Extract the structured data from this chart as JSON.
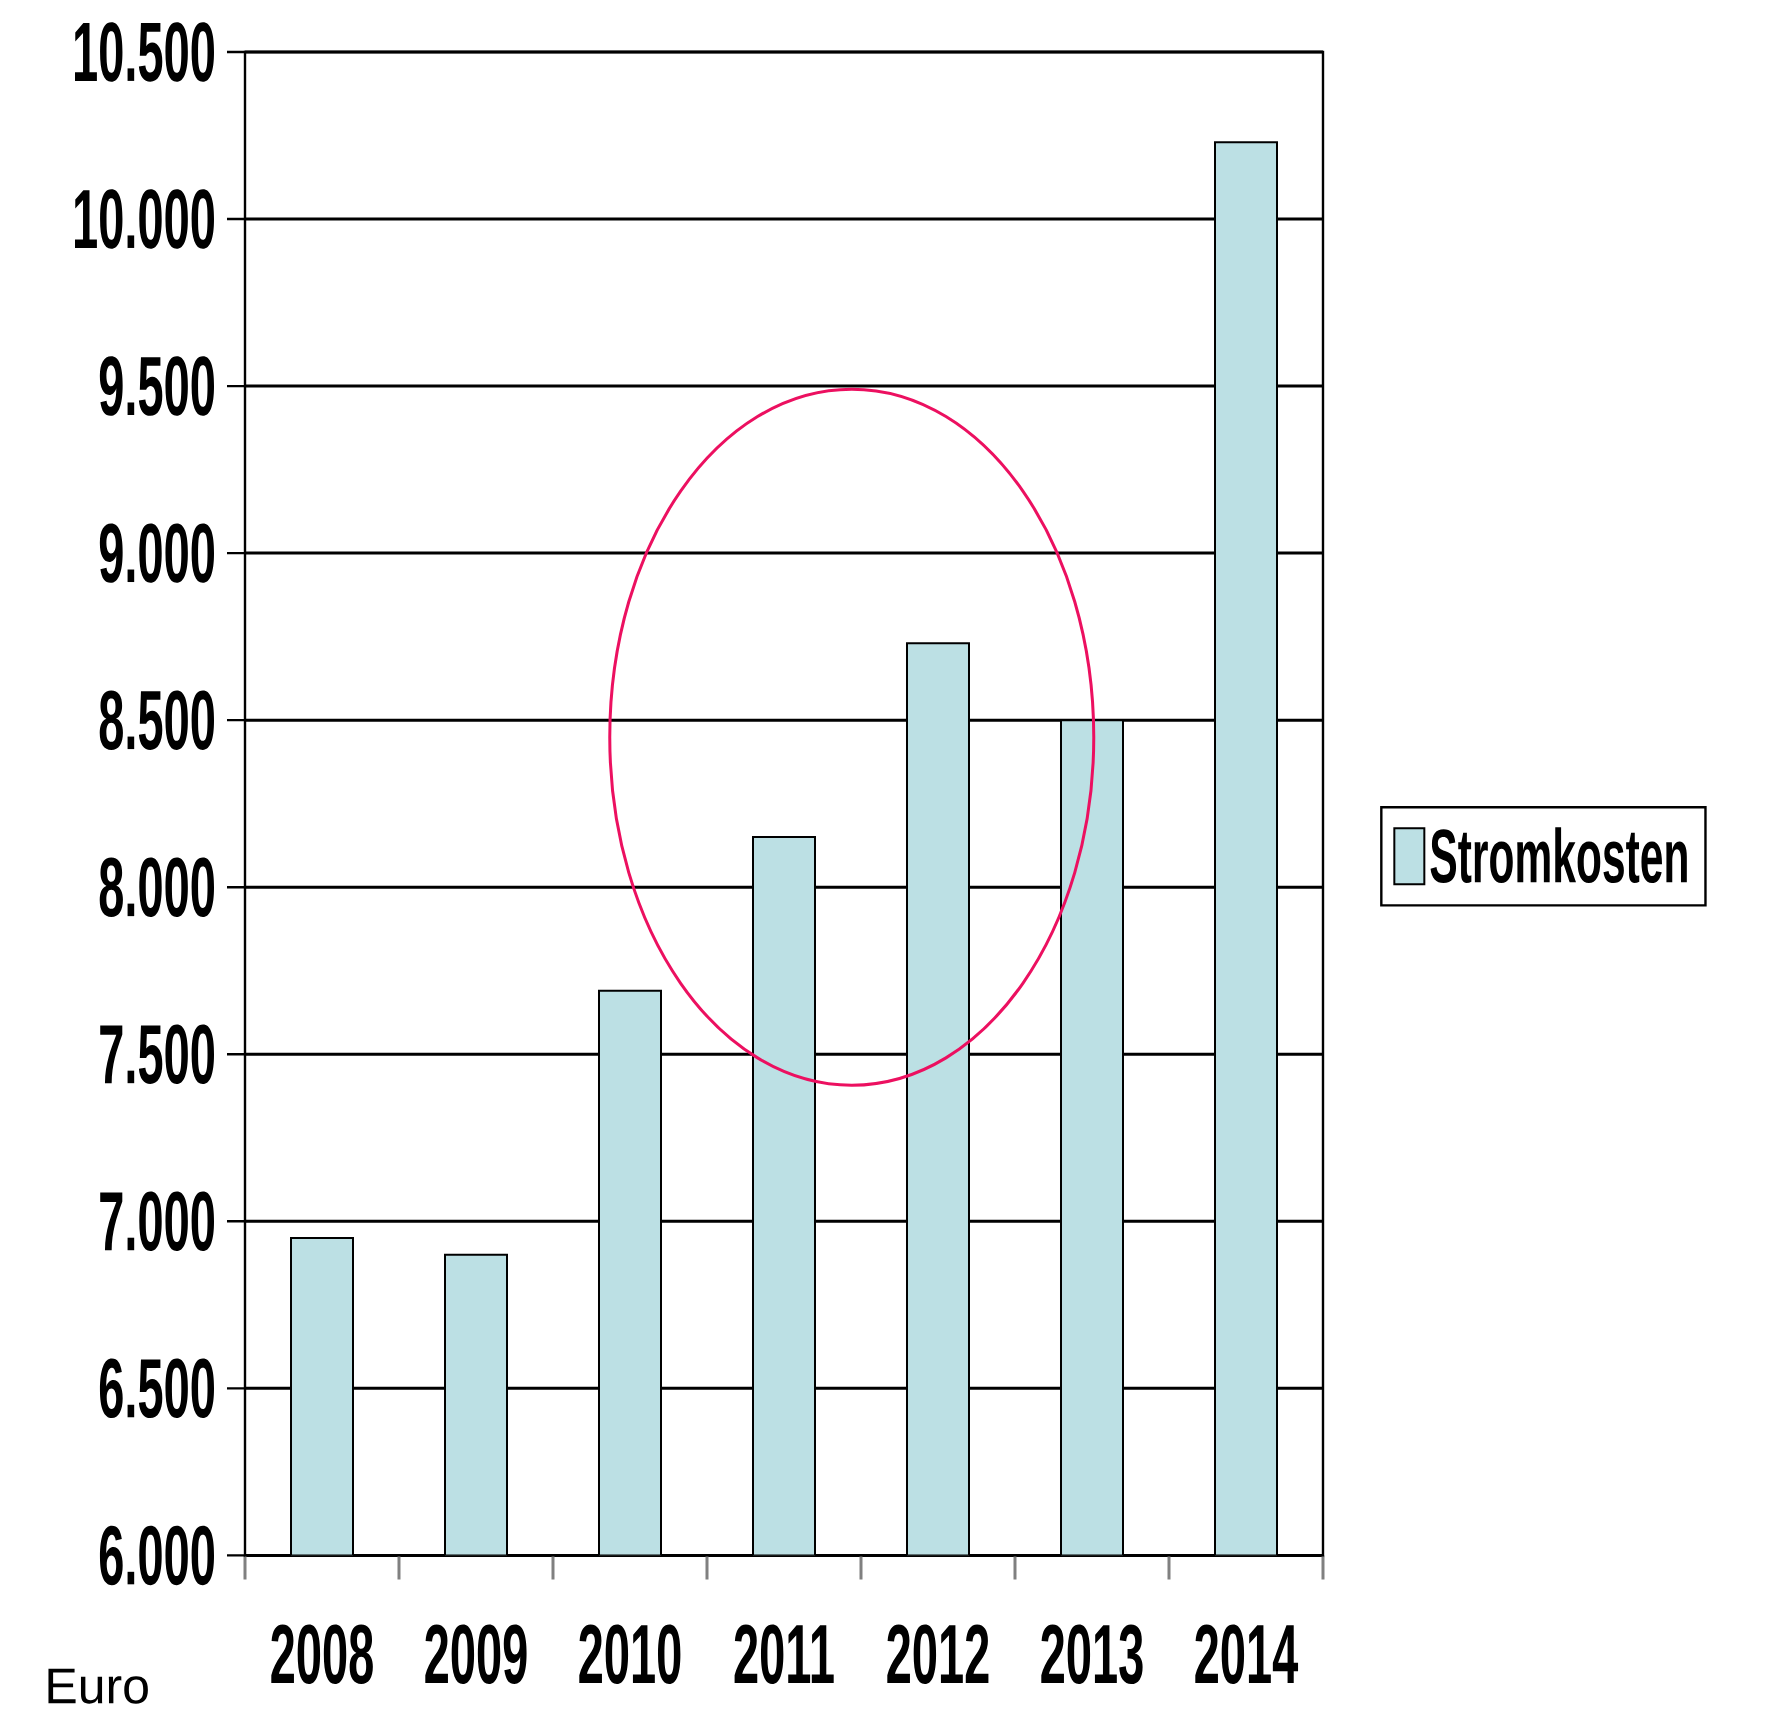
{
  "chart_data": {
    "type": "bar",
    "categories": [
      "2008",
      "2009",
      "2010",
      "2011",
      "2012",
      "2013",
      "2014"
    ],
    "series": [
      {
        "name": "Stromkosten",
        "color": "#bce0e4",
        "values": [
          6950,
          6900,
          7690,
          8150,
          8730,
          8500,
          10230
        ]
      }
    ],
    "ylim": [
      6000,
      10500
    ],
    "yticks": [
      {
        "value": 6000,
        "label": "6.000"
      },
      {
        "value": 6500,
        "label": "6.500"
      },
      {
        "value": 7000,
        "label": "7.000"
      },
      {
        "value": 7500,
        "label": "7.500"
      },
      {
        "value": 8000,
        "label": "8.000"
      },
      {
        "value": 8500,
        "label": "8.500"
      },
      {
        "value": 9000,
        "label": "9.000"
      },
      {
        "value": 9500,
        "label": "9.500"
      },
      {
        "value": 10000,
        "label": "10.000"
      },
      {
        "value": 10500,
        "label": "10.500"
      }
    ],
    "ylabel": "Euro",
    "grid": "y",
    "legend": "right"
  }
}
